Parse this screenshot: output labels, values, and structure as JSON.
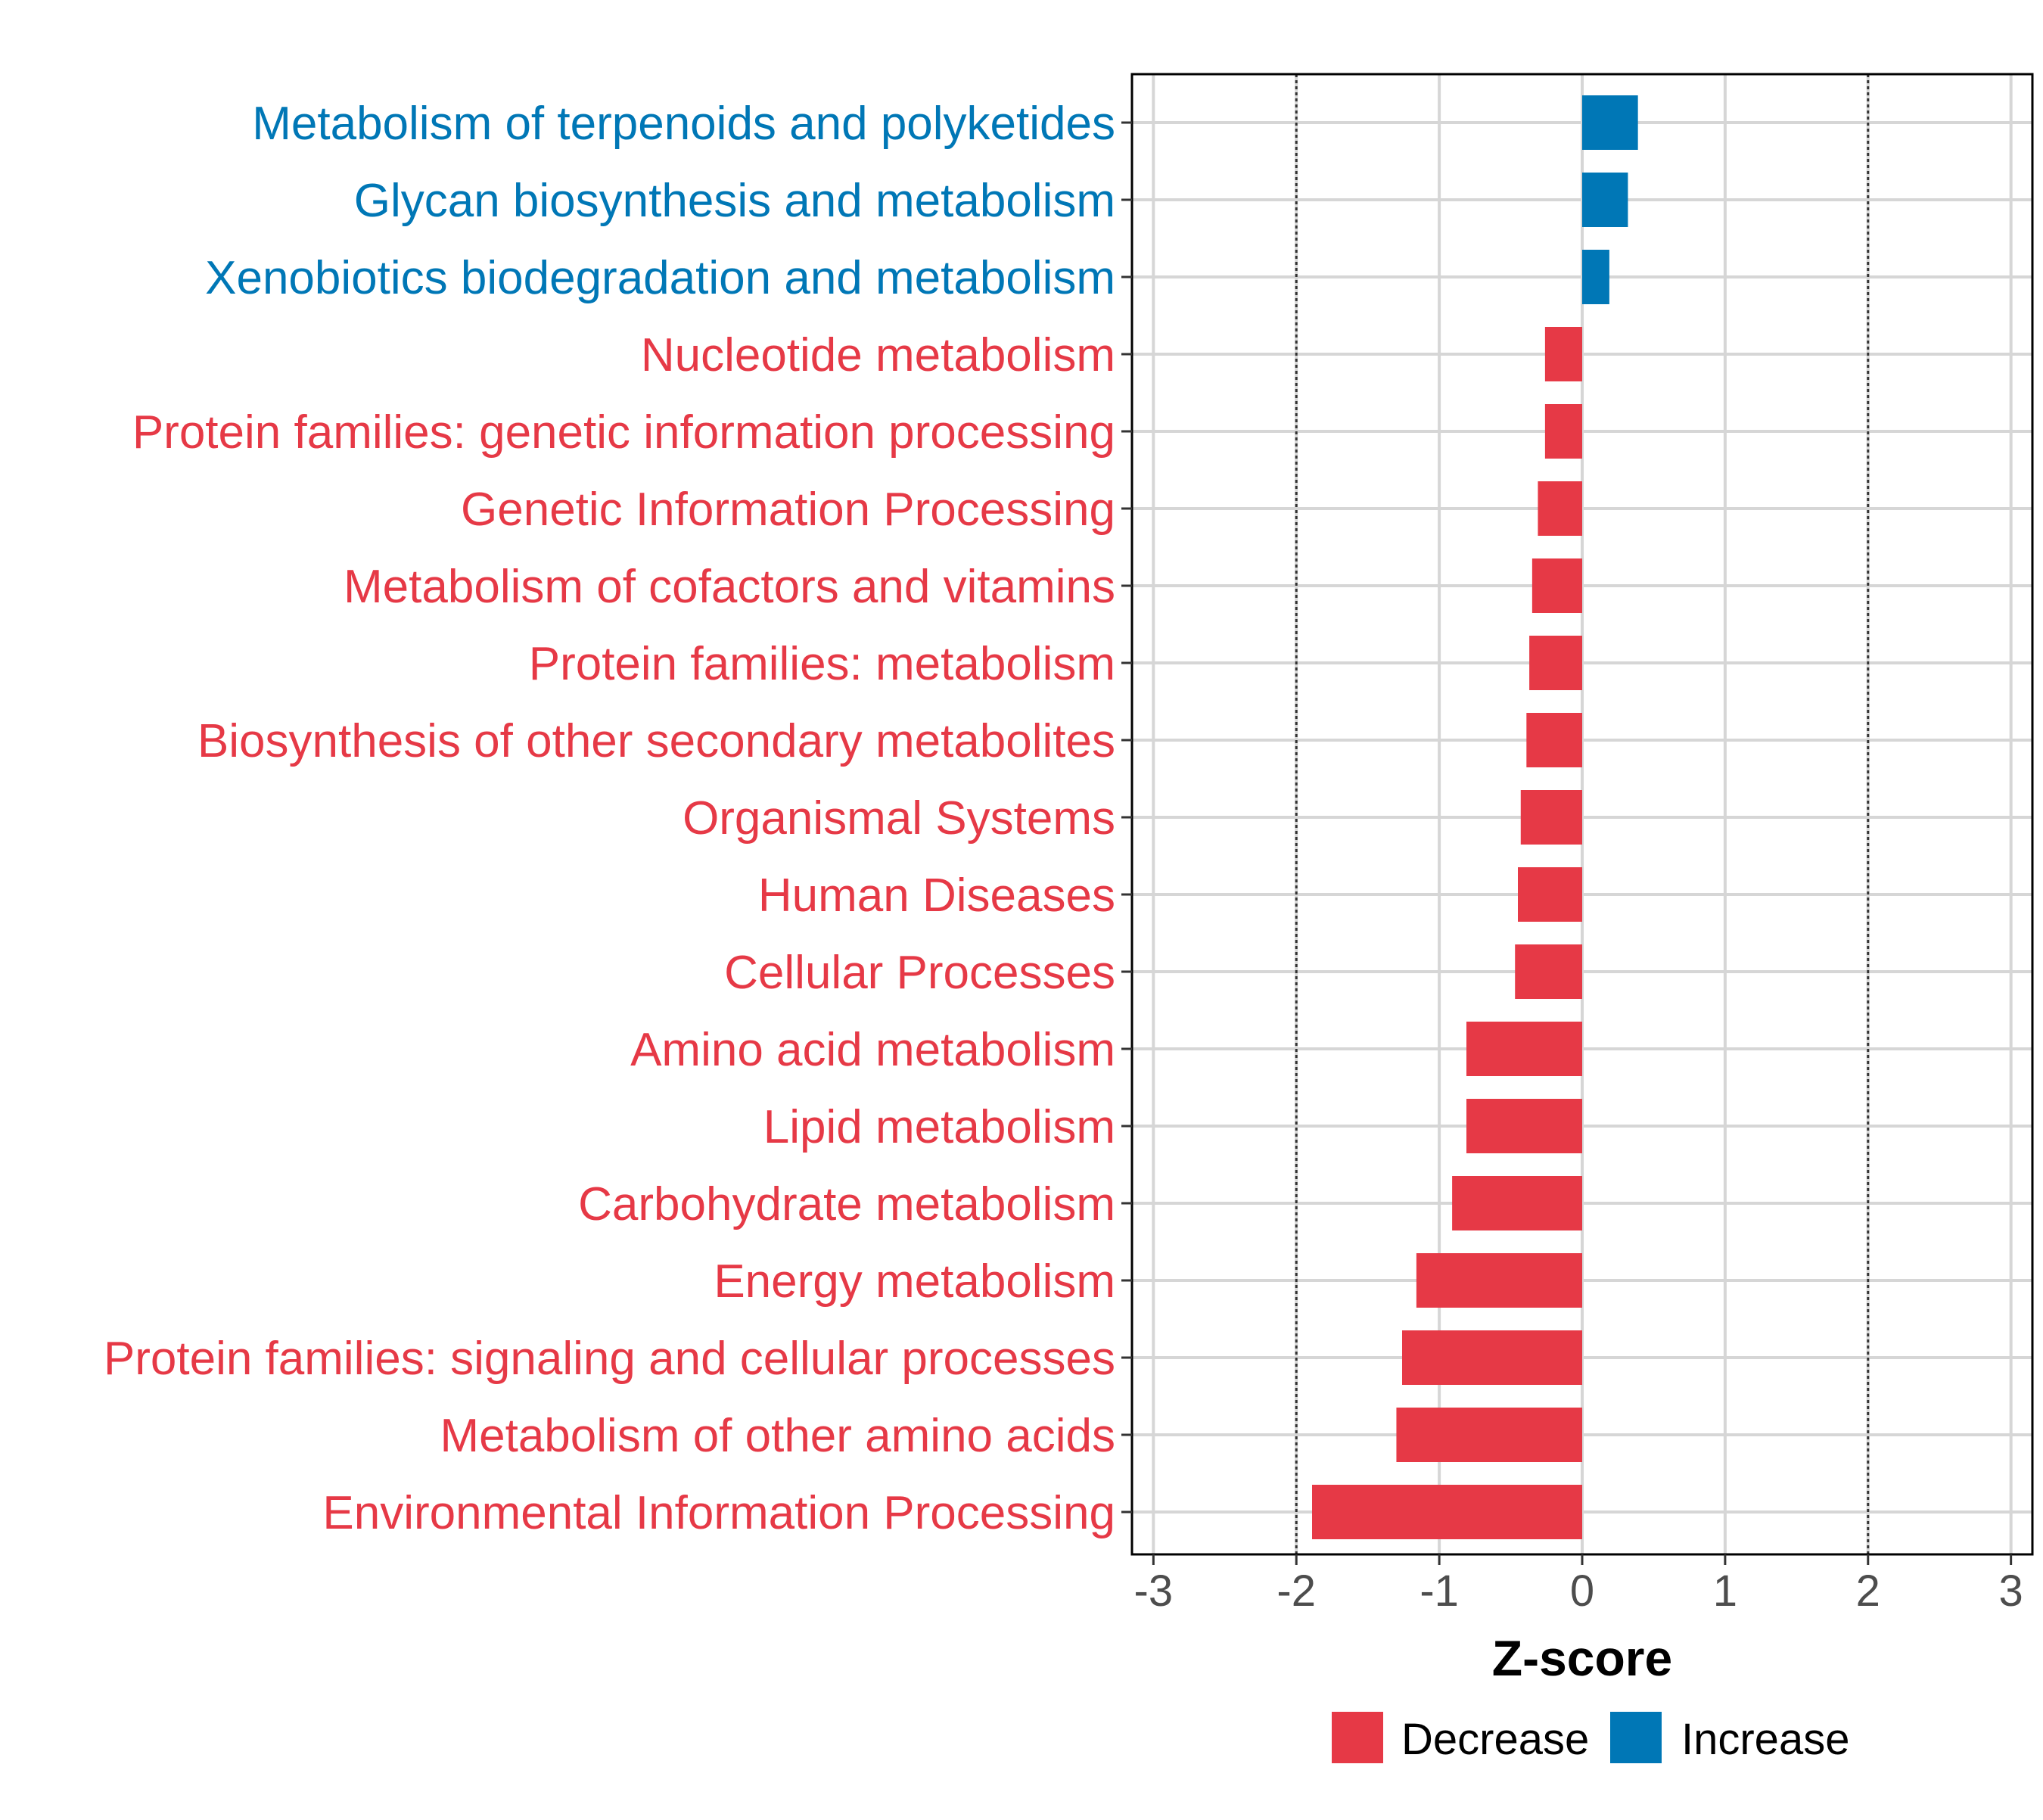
{
  "chart_data": {
    "type": "bar",
    "orientation": "horizontal",
    "title": "",
    "xlabel": "Z-score",
    "ylabel": "",
    "xlim": [
      -3.15,
      3.15
    ],
    "xticks": [
      -3,
      -2,
      -1,
      0,
      1,
      2,
      3
    ],
    "xtick_labels": [
      "-3",
      "-2",
      "-1",
      "0",
      "1",
      "2",
      "3"
    ],
    "reference_lines": [
      -2,
      2
    ],
    "grid": true,
    "legend_position": "bottom",
    "legend": [
      {
        "label": "Decrease",
        "color": "#E63946"
      },
      {
        "label": "Increase",
        "color": "#0077B6"
      }
    ],
    "categories": [
      "Metabolism of terpenoids and polyketides",
      "Glycan biosynthesis and metabolism",
      "Xenobiotics biodegradation and metabolism",
      "Nucleotide metabolism",
      "Protein families: genetic information processing",
      "Genetic Information Processing",
      "Metabolism of cofactors and vitamins",
      "Protein families: metabolism",
      "Biosynthesis of other secondary metabolites",
      "Organismal Systems",
      "Human Diseases",
      "Cellular Processes",
      "Amino acid metabolism",
      "Lipid metabolism",
      "Carbohydrate metabolism",
      "Energy metabolism",
      "Protein families: signaling and cellular processes",
      "Metabolism of other amino acids",
      "Environmental Information Processing"
    ],
    "values": [
      0.39,
      0.32,
      0.19,
      -0.26,
      -0.26,
      -0.31,
      -0.35,
      -0.37,
      -0.39,
      -0.43,
      -0.45,
      -0.47,
      -0.81,
      -0.81,
      -0.91,
      -1.16,
      -1.26,
      -1.3,
      -1.89
    ],
    "groups": [
      "Increase",
      "Increase",
      "Increase",
      "Decrease",
      "Decrease",
      "Decrease",
      "Decrease",
      "Decrease",
      "Decrease",
      "Decrease",
      "Decrease",
      "Decrease",
      "Decrease",
      "Decrease",
      "Decrease",
      "Decrease",
      "Decrease",
      "Decrease",
      "Decrease"
    ]
  }
}
